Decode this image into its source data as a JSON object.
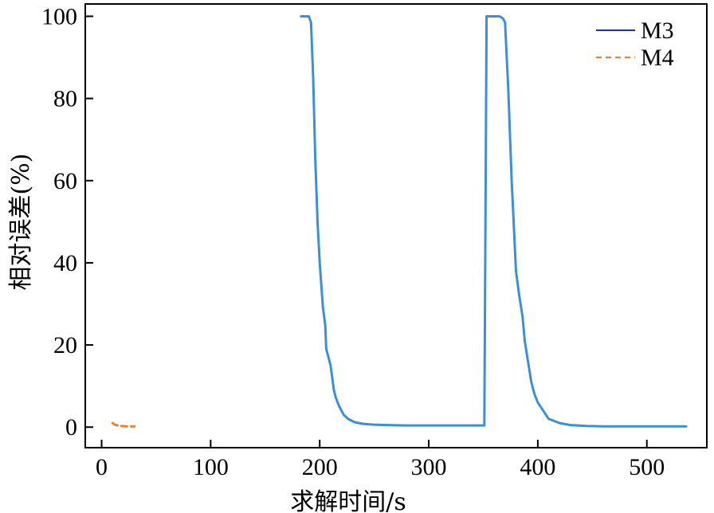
{
  "chart_data": {
    "type": "line",
    "xlabel": "求解时间/s",
    "ylabel": "相对误差(%)",
    "xlim": [
      -15,
      555
    ],
    "ylim": [
      -5,
      103
    ],
    "xticks": [
      0,
      100,
      200,
      300,
      400,
      500
    ],
    "xtick_labels": [
      "0",
      "100",
      "200",
      "300",
      "400",
      "500"
    ],
    "yticks": [
      0,
      20,
      40,
      60,
      80,
      100
    ],
    "ytick_labels": [
      "0",
      "20",
      "40",
      "60",
      "80",
      "100"
    ],
    "grid": false,
    "legend_position": "top-right",
    "series": [
      {
        "name": "M3",
        "color": "#3a8fd9",
        "legend_color": "#1a2fa8",
        "dash": "solid",
        "x": [
          183,
          190,
          192,
          194,
          196,
          198,
          200,
          203,
          205,
          206,
          208,
          210,
          213,
          215,
          218,
          222,
          226,
          232,
          240,
          250,
          262,
          280,
          300,
          330,
          351,
          352,
          353,
          358,
          365,
          368,
          370,
          373,
          376,
          380,
          383,
          386,
          388,
          391,
          394,
          397,
          400,
          405,
          410,
          420,
          430,
          445,
          460,
          490,
          520,
          536
        ],
        "y": [
          100,
          100,
          98.5,
          85,
          65,
          50,
          40,
          29,
          25,
          19,
          17,
          15,
          9,
          7,
          5,
          3,
          2,
          1.2,
          0.8,
          0.6,
          0.5,
          0.4,
          0.4,
          0.4,
          0.4,
          50,
          100,
          100,
          100,
          99.5,
          98.5,
          82,
          60,
          38,
          32,
          27,
          21,
          16,
          11,
          8,
          6,
          4,
          2,
          1,
          0.5,
          0.3,
          0.2,
          0.2,
          0.2,
          0.2
        ]
      },
      {
        "name": "M4",
        "color": "#f07f2e",
        "legend_color": "#f07f2e",
        "dash": "dashed",
        "x": [
          10,
          12,
          15,
          18,
          22,
          26,
          30
        ],
        "y": [
          1.0,
          0.6,
          0.4,
          0.3,
          0.2,
          0.2,
          0.2
        ]
      }
    ]
  }
}
